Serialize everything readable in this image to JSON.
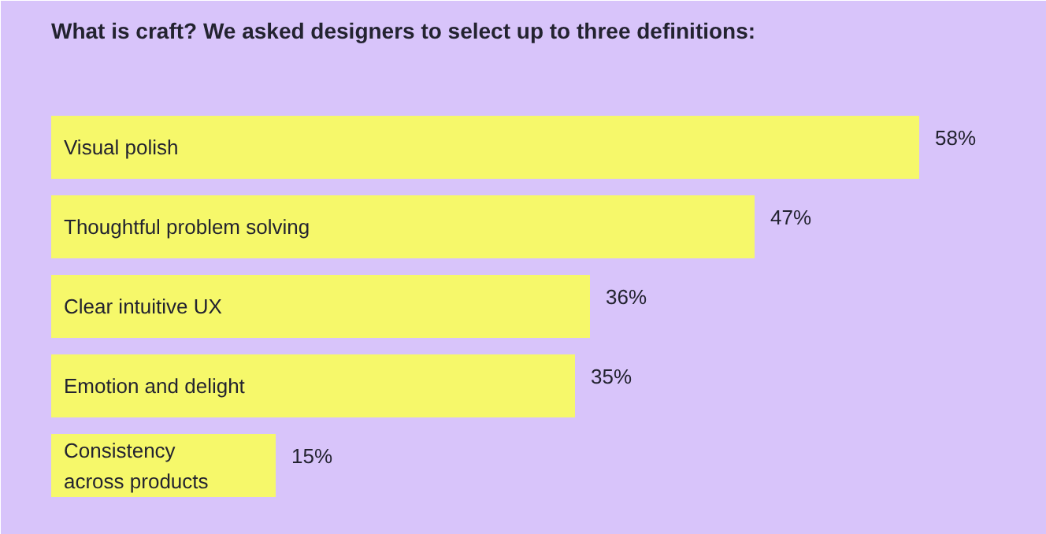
{
  "chart_data": {
    "type": "bar",
    "orientation": "horizontal",
    "title": "What is craft? We asked designers to select up to three definitions:",
    "categories": [
      "Visual polish",
      "Thoughtful problem solving",
      "Clear intuitive UX",
      "Emotion and delight",
      "Consistency\nacross products"
    ],
    "values": [
      58,
      47,
      36,
      35,
      15
    ],
    "color": "#f6f86a",
    "value_labels": [
      "58%",
      "47%",
      "36%",
      "35%",
      "15%"
    ]
  }
}
